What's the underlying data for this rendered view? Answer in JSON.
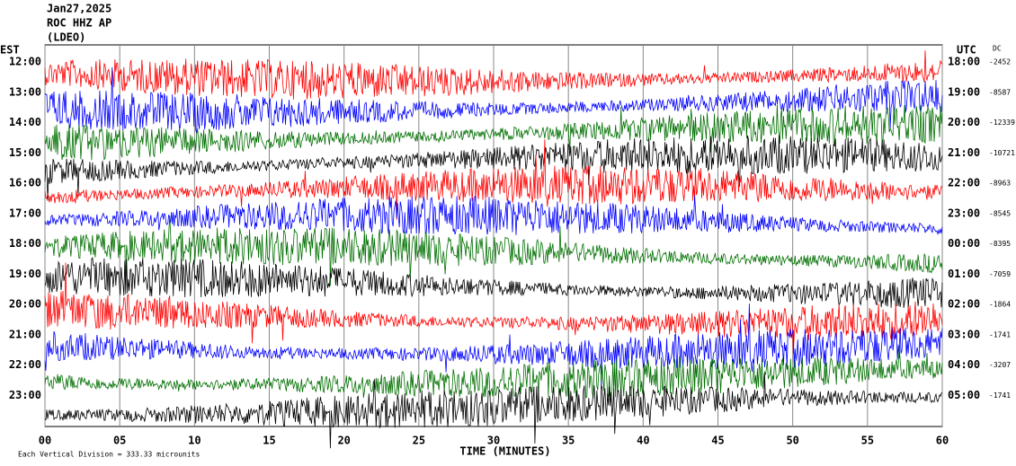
{
  "chart_data": {
    "type": "helicorder",
    "header": [
      "Jan27,2025",
      "ROC HHZ AP",
      "(LDEO)"
    ],
    "left_label": "EST",
    "right_label": "UTC",
    "dc_label": "DC",
    "xlabel": "TIME (MINUTES)",
    "footnote": "Each Vertical Division = 333.33 microunits",
    "xlim": [
      0,
      60
    ],
    "xticks": [
      {
        "value": 0,
        "label": "00"
      },
      {
        "value": 5,
        "label": "05"
      },
      10,
      15,
      20,
      25,
      30,
      35,
      40,
      45,
      50,
      55,
      60
    ],
    "rows": [
      {
        "est": "12:00",
        "utc": "18:00",
        "dc": -2452,
        "color": "#ff0000"
      },
      {
        "est": "13:00",
        "utc": "19:00",
        "dc": -8587,
        "color": "#0000ff"
      },
      {
        "est": "14:00",
        "utc": "20:00",
        "dc": -12339,
        "color": "#007000"
      },
      {
        "est": "15:00",
        "utc": "21:00",
        "dc": -10721,
        "color": "#000000"
      },
      {
        "est": "16:00",
        "utc": "22:00",
        "dc": -8963,
        "color": "#ff0000"
      },
      {
        "est": "17:00",
        "utc": "23:00",
        "dc": -8545,
        "color": "#0000ff"
      },
      {
        "est": "18:00",
        "utc": "00:00",
        "dc": -8395,
        "color": "#007000"
      },
      {
        "est": "19:00",
        "utc": "01:00",
        "dc": -7059,
        "color": "#000000"
      },
      {
        "est": "20:00",
        "utc": "02:00",
        "dc": -1864,
        "color": "#ff0000"
      },
      {
        "est": "21:00",
        "utc": "03:00",
        "dc": -1741,
        "color": "#0000ff"
      },
      {
        "est": "22:00",
        "utc": "04:00",
        "dc": -3207,
        "color": "#007000"
      },
      {
        "est": "23:00",
        "utc": "05:00",
        "dc": -1741,
        "color": "#000000"
      }
    ]
  }
}
